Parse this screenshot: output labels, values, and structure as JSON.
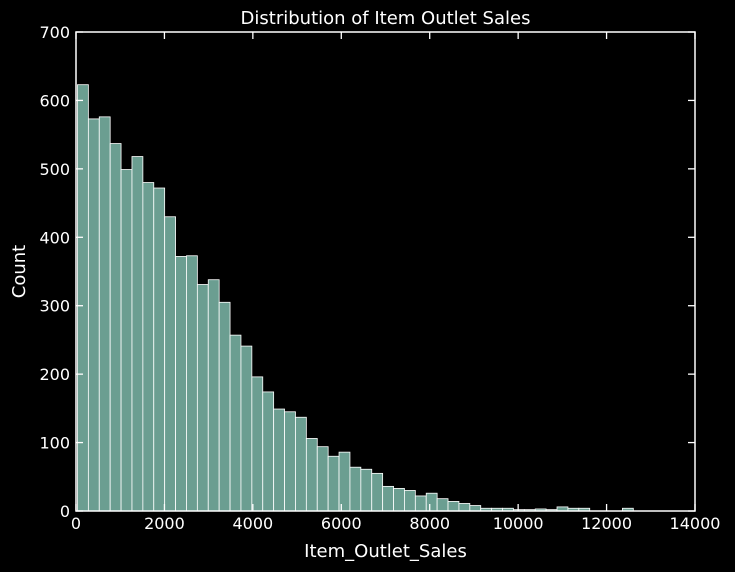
{
  "colors": {
    "background": "#000000",
    "bar_fill": "#6b9e91",
    "bar_edge": "#ffffff",
    "text": "#ffffff",
    "axes": "#ffffff"
  },
  "chart_data": {
    "type": "bar",
    "title": "Distribution of Item Outlet Sales",
    "xlabel": "Item_Outlet_Sales",
    "ylabel": "Count",
    "xlim": [
      0,
      14000
    ],
    "ylim": [
      0,
      700
    ],
    "grid": false,
    "bin_width": 246.5,
    "bin_start": 33.29,
    "values": [
      623,
      573,
      576,
      537,
      499,
      518,
      480,
      472,
      430,
      372,
      373,
      331,
      338,
      305,
      257,
      241,
      196,
      174,
      149,
      145,
      137,
      106,
      94,
      80,
      86,
      64,
      61,
      55,
      36,
      33,
      30,
      22,
      26,
      18,
      14,
      11,
      8,
      4,
      4,
      4,
      2,
      2,
      3,
      2,
      6,
      4,
      4,
      0,
      0,
      0,
      4,
      0,
      0
    ],
    "x_ticks": [
      "0",
      "2000",
      "4000",
      "6000",
      "8000",
      "10000",
      "12000",
      "14000"
    ],
    "y_ticks": [
      "0",
      "100",
      "200",
      "300",
      "400",
      "500",
      "600",
      "700"
    ],
    "x_tick_values": [
      0,
      2000,
      4000,
      6000,
      8000,
      10000,
      12000,
      14000
    ],
    "y_tick_values": [
      0,
      100,
      200,
      300,
      400,
      500,
      600,
      700
    ]
  }
}
